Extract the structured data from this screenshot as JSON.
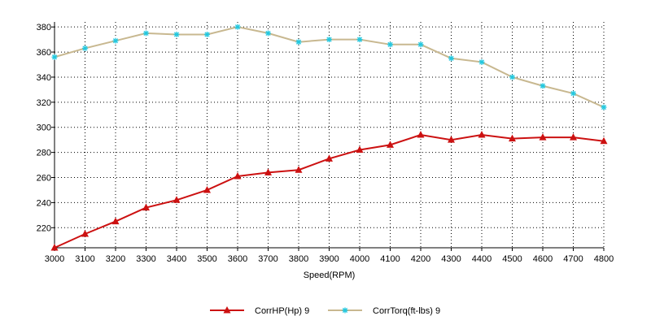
{
  "chart_data": {
    "type": "line",
    "xlabel": "Speed(RPM)",
    "ylabel": "",
    "title": "",
    "xlim": [
      3000,
      4800
    ],
    "ylim": [
      204,
      384
    ],
    "x_ticks": [
      3000,
      3100,
      3200,
      3300,
      3400,
      3500,
      3600,
      3700,
      3800,
      3900,
      4000,
      4100,
      4200,
      4300,
      4400,
      4500,
      4600,
      4700,
      4800
    ],
    "y_ticks": [
      220,
      240,
      260,
      280,
      300,
      320,
      340,
      360,
      380
    ],
    "grid": true,
    "grid_style": "dotted",
    "legend_position": "bottom",
    "x": [
      3000,
      3100,
      3200,
      3300,
      3400,
      3500,
      3600,
      3700,
      3800,
      3900,
      4000,
      4100,
      4200,
      4300,
      4400,
      4500,
      4600,
      4700,
      4800
    ],
    "series": [
      {
        "name": "CorrHP(Hp)  9",
        "color": "#cc1111",
        "marker": "triangle",
        "values": [
          204,
          215,
          225,
          236,
          242,
          250,
          261,
          264,
          266,
          275,
          282,
          286,
          294,
          290,
          294,
          291,
          292,
          292,
          289
        ]
      },
      {
        "name": "CorrTorq(ft-lbs)  9",
        "color": "#c8b890",
        "marker": "star",
        "marker_color": "#22c8e0",
        "values": [
          356,
          363,
          369,
          375,
          374,
          374,
          380,
          375,
          368,
          370,
          370,
          366,
          366,
          355,
          352,
          340,
          333,
          327,
          316
        ]
      }
    ]
  }
}
